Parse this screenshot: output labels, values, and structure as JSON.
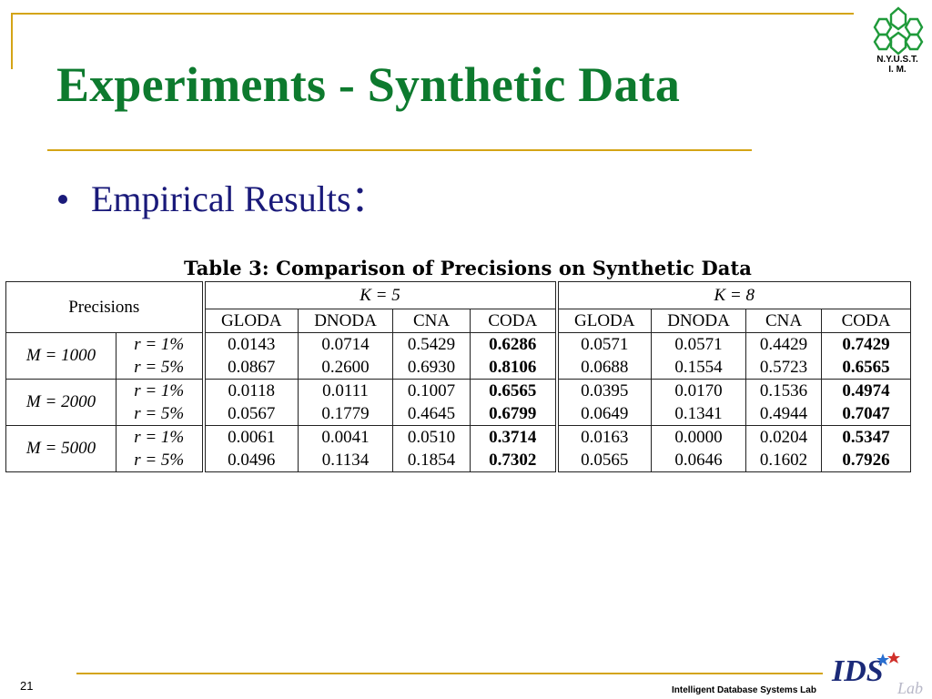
{
  "slide": {
    "title": "Experiments - Synthetic Data",
    "bullet": "Empirical Results：",
    "page_number": "21",
    "footer_label": "Intelligent Database Systems Lab",
    "logo_label_line1": "N.Y.U.S.T.",
    "logo_label_line2": "I. M.",
    "ids_logo_text": "IDS",
    "ids_logo_sub": "Lab"
  },
  "colors": {
    "title": "#0d7a2e",
    "bullet": "#1a1a7a",
    "frame_lines": "#d4a416",
    "logo": "#1f9a3a"
  },
  "table": {
    "caption": "Table 3:  Comparison of Precisions on Synthetic Data",
    "corner_label": "Precisions",
    "group_headers": [
      "K = 5",
      "K = 8"
    ],
    "column_headers": [
      "GLODA",
      "DNODA",
      "CNA",
      "CODA",
      "GLODA",
      "DNODA",
      "CNA",
      "CODA"
    ],
    "rows": [
      {
        "m_label": "M = 1000",
        "r_labels": [
          "r = 1%",
          "r = 5%"
        ],
        "values": [
          [
            "0.0143",
            "0.0714",
            "0.5429",
            "0.6286",
            "0.0571",
            "0.0571",
            "0.4429",
            "0.7429"
          ],
          [
            "0.0867",
            "0.2600",
            "0.6930",
            "0.8106",
            "0.0688",
            "0.1554",
            "0.5723",
            "0.6565"
          ]
        ]
      },
      {
        "m_label": "M = 2000",
        "r_labels": [
          "r = 1%",
          "r = 5%"
        ],
        "values": [
          [
            "0.0118",
            "0.0111",
            "0.1007",
            "0.6565",
            "0.0395",
            "0.0170",
            "0.1536",
            "0.4974"
          ],
          [
            "0.0567",
            "0.1779",
            "0.4645",
            "0.6799",
            "0.0649",
            "0.1341",
            "0.4944",
            "0.7047"
          ]
        ]
      },
      {
        "m_label": "M = 5000",
        "r_labels": [
          "r = 1%",
          "r = 5%"
        ],
        "values": [
          [
            "0.0061",
            "0.0041",
            "0.0510",
            "0.3714",
            "0.0163",
            "0.0000",
            "0.0204",
            "0.5347"
          ],
          [
            "0.0496",
            "0.1134",
            "0.1854",
            "0.7302",
            "0.0565",
            "0.0646",
            "0.1602",
            "0.7926"
          ]
        ]
      }
    ]
  }
}
